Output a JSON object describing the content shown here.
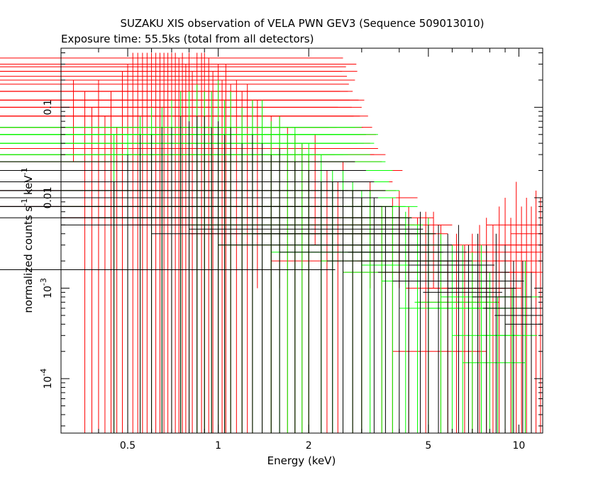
{
  "chart_data": {
    "type": "scatter",
    "title": "SUZAKU XIS observation of VELA PWN GEV3 (Sequence 509013010)",
    "subtitle": "Exposure time: 55.5ks (total from all detectors)",
    "xlabel": "Energy (keV)",
    "ylabel": "normalized counts s^-1 keV^-1",
    "x_scale": "log",
    "y_scale": "log",
    "xlim": [
      0.3,
      12.0
    ],
    "ylim": [
      2.5e-05,
      0.45
    ],
    "x_ticks": [
      {
        "value": 0.5,
        "label": "0.5"
      },
      {
        "value": 1,
        "label": "1"
      },
      {
        "value": 2,
        "label": "2"
      },
      {
        "value": 5,
        "label": "5"
      },
      {
        "value": 10,
        "label": "10"
      }
    ],
    "y_ticks": [
      {
        "value": 0.0001,
        "label": "10^-4"
      },
      {
        "value": 0.001,
        "label": "10^-3"
      },
      {
        "value": 0.01,
        "label": "0.01"
      },
      {
        "value": 0.1,
        "label": "0.1"
      }
    ],
    "grid": false,
    "legend": "none",
    "series": [
      {
        "color": "#ff0000",
        "points": [
          [
            0.33,
            0.06,
            0.025,
            0.2
          ],
          [
            0.36,
            0.035,
            2e-05,
            0.15
          ],
          [
            0.38,
            0.02,
            2e-05,
            0.1
          ],
          [
            0.4,
            0.05,
            2e-05,
            0.2
          ],
          [
            0.42,
            0.015,
            2e-05,
            0.08
          ],
          [
            0.44,
            0.03,
            2e-05,
            0.15
          ],
          [
            0.46,
            0.008,
            2e-05,
            0.06
          ],
          [
            0.48,
            0.06,
            2e-05,
            0.25
          ],
          [
            0.5,
            0.1,
            2e-05,
            0.3
          ],
          [
            0.52,
            0.2,
            2e-05,
            0.4
          ],
          [
            0.54,
            0.15,
            2e-05,
            0.4
          ],
          [
            0.56,
            0.3,
            2e-05,
            0.4
          ],
          [
            0.58,
            0.25,
            2e-05,
            0.4
          ],
          [
            0.6,
            0.35,
            2e-05,
            0.4
          ],
          [
            0.62,
            0.3,
            2e-05,
            0.4
          ],
          [
            0.64,
            0.2,
            2e-05,
            0.4
          ],
          [
            0.66,
            0.28,
            2e-05,
            0.4
          ],
          [
            0.68,
            0.22,
            2e-05,
            0.4
          ],
          [
            0.7,
            0.15,
            2e-05,
            0.4
          ],
          [
            0.72,
            0.18,
            2e-05,
            0.4
          ],
          [
            0.74,
            0.12,
            2e-05,
            0.35
          ],
          [
            0.76,
            0.2,
            2e-05,
            0.4
          ],
          [
            0.78,
            0.1,
            2e-05,
            0.3
          ],
          [
            0.8,
            0.15,
            2e-05,
            0.4
          ],
          [
            0.82,
            0.08,
            2e-05,
            0.25
          ],
          [
            0.85,
            0.2,
            2e-05,
            0.4
          ],
          [
            0.88,
            0.3,
            2e-05,
            0.4
          ],
          [
            0.9,
            0.25,
            2e-05,
            0.4
          ],
          [
            0.93,
            0.12,
            2e-05,
            0.35
          ],
          [
            0.96,
            0.08,
            2e-05,
            0.25
          ],
          [
            1.0,
            0.1,
            2e-05,
            0.3
          ],
          [
            1.03,
            0.06,
            2e-05,
            0.2
          ],
          [
            1.06,
            0.12,
            2e-05,
            0.3
          ],
          [
            1.1,
            0.05,
            2e-05,
            0.18
          ],
          [
            1.15,
            0.08,
            2e-05,
            0.2
          ],
          [
            1.2,
            0.04,
            2e-05,
            0.15
          ],
          [
            1.25,
            0.06,
            2e-05,
            0.18
          ],
          [
            1.3,
            0.03,
            2e-05,
            0.12
          ],
          [
            1.35,
            0.05,
            0.001,
            0.12
          ],
          [
            1.4,
            0.035,
            2e-05,
            0.1
          ],
          [
            1.5,
            0.025,
            2e-05,
            0.08
          ],
          [
            1.6,
            0.03,
            0.001,
            0.08
          ],
          [
            1.7,
            0.02,
            2e-05,
            0.06
          ],
          [
            1.8,
            0.015,
            2e-05,
            0.05
          ],
          [
            1.9,
            0.012,
            2e-05,
            0.04
          ],
          [
            2.0,
            0.008,
            2e-05,
            0.03
          ],
          [
            2.1,
            0.02,
            0.003,
            0.05
          ],
          [
            2.3,
            0.006,
            2e-05,
            0.02
          ],
          [
            2.5,
            0.005,
            2e-05,
            0.015
          ],
          [
            2.6,
            0.01,
            0.002,
            0.025
          ],
          [
            2.8,
            0.004,
            2e-05,
            0.012
          ],
          [
            3.0,
            0.003,
            2e-05,
            0.01
          ],
          [
            3.2,
            0.006,
            0.001,
            0.015
          ],
          [
            3.5,
            0.002,
            2e-05,
            0.008
          ],
          [
            3.8,
            0.004,
            2e-05,
            0.01
          ],
          [
            4.0,
            0.005,
            0.001,
            0.012
          ],
          [
            4.3,
            0.003,
            2e-05,
            0.008
          ],
          [
            4.6,
            0.0015,
            2e-05,
            0.006
          ],
          [
            4.9,
            0.002,
            2e-05,
            0.007
          ],
          [
            5.2,
            0.003,
            0.001,
            0.007
          ],
          [
            5.5,
            0.0015,
            2e-05,
            0.005
          ],
          [
            5.8,
            0.0002,
            2e-05,
            0.002
          ],
          [
            6.2,
            0.001,
            2e-05,
            0.004
          ],
          [
            6.6,
            0.0007,
            2e-05,
            0.003
          ],
          [
            7.0,
            0.001,
            2e-05,
            0.004
          ],
          [
            7.4,
            0.002,
            2e-05,
            0.005
          ],
          [
            7.8,
            0.0015,
            2e-05,
            0.006
          ],
          [
            8.2,
            0.001,
            2e-05,
            0.005
          ],
          [
            8.6,
            0.0025,
            2e-05,
            0.008
          ],
          [
            9.0,
            0.003,
            2e-05,
            0.01
          ],
          [
            9.4,
            0.0015,
            2e-05,
            0.006
          ],
          [
            9.8,
            0.005,
            2e-05,
            0.015
          ],
          [
            10.2,
            0.002,
            2e-05,
            0.008
          ],
          [
            10.6,
            0.003,
            2e-05,
            0.01
          ],
          [
            11.0,
            0.0015,
            2e-05,
            0.008
          ],
          [
            11.4,
            0.004,
            2e-05,
            0.012
          ],
          [
            11.8,
            0.0025,
            2e-05,
            0.01
          ]
        ]
      },
      {
        "color": "#00ff00",
        "points": [
          [
            0.35,
            0.0016,
            0.0016,
            0.0016
          ],
          [
            0.45,
            0.015,
            2e-05,
            0.05
          ],
          [
            0.5,
            0.01,
            2e-05,
            0.05
          ],
          [
            0.55,
            0.02,
            2e-05,
            0.08
          ],
          [
            0.6,
            0.03,
            2e-05,
            0.1
          ],
          [
            0.65,
            0.02,
            2e-05,
            0.1
          ],
          [
            0.7,
            0.03,
            2e-05,
            0.12
          ],
          [
            0.75,
            0.04,
            2e-05,
            0.15
          ],
          [
            0.8,
            0.05,
            2e-05,
            0.15
          ],
          [
            0.85,
            0.06,
            2e-05,
            0.18
          ],
          [
            0.9,
            0.04,
            2e-05,
            0.15
          ],
          [
            0.95,
            0.05,
            2e-05,
            0.15
          ],
          [
            1.0,
            0.06,
            2e-05,
            0.2
          ],
          [
            1.05,
            0.04,
            2e-05,
            0.12
          ],
          [
            1.1,
            0.05,
            2e-05,
            0.15
          ],
          [
            1.2,
            0.03,
            2e-05,
            0.1
          ],
          [
            1.3,
            0.04,
            2e-05,
            0.12
          ],
          [
            1.4,
            0.05,
            2e-05,
            0.12
          ],
          [
            1.5,
            0.02,
            2e-05,
            0.07
          ],
          [
            1.6,
            0.025,
            2e-05,
            0.08
          ],
          [
            1.7,
            0.015,
            2e-05,
            0.05
          ],
          [
            1.8,
            0.02,
            2e-05,
            0.06
          ],
          [
            1.9,
            0.01,
            2e-05,
            0.04
          ],
          [
            2.0,
            0.012,
            2e-05,
            0.04
          ],
          [
            2.2,
            0.008,
            2e-05,
            0.03
          ],
          [
            2.4,
            0.006,
            2e-05,
            0.02
          ],
          [
            2.6,
            0.008,
            2e-05,
            0.02
          ],
          [
            2.8,
            0.005,
            2e-05,
            0.015
          ],
          [
            3.0,
            0.003,
            2e-05,
            0.012
          ],
          [
            3.2,
            0.004,
            2e-05,
            0.012
          ],
          [
            3.5,
            0.0025,
            2e-05,
            0.008
          ],
          [
            3.8,
            0.003,
            2e-05,
            0.008
          ],
          [
            4.2,
            0.002,
            2e-05,
            0.007
          ],
          [
            4.6,
            0.0015,
            2e-05,
            0.005
          ],
          [
            5.0,
            0.0018,
            2e-05,
            0.006
          ],
          [
            5.5,
            0.0012,
            2e-05,
            0.004
          ],
          [
            6.0,
            0.0006,
            2e-05,
            0.003
          ],
          [
            6.5,
            0.0007,
            2e-05,
            0.003
          ],
          [
            7.0,
            0.0006,
            2e-05,
            0.0025
          ],
          [
            7.5,
            0.0008,
            2e-05,
            0.003
          ],
          [
            8.0,
            0.0003,
            2e-05,
            0.0015
          ],
          [
            8.5,
            0.00015,
            2e-05,
            0.0008
          ],
          [
            9.0,
            0.0006,
            2e-05,
            0.002
          ],
          [
            9.5,
            0.0003,
            2e-05,
            0.001
          ],
          [
            10.5,
            0.0008,
            2e-05,
            0.002
          ]
        ]
      },
      {
        "color": "#000000",
        "points": [
          [
            0.45,
            0.0016,
            2e-05,
            0.015
          ],
          [
            0.5,
            0.006,
            2e-05,
            0.03
          ],
          [
            0.55,
            0.01,
            2e-05,
            0.05
          ],
          [
            0.6,
            0.008,
            2e-05,
            0.05
          ],
          [
            0.65,
            0.015,
            2e-05,
            0.06
          ],
          [
            0.7,
            0.012,
            2e-05,
            0.06
          ],
          [
            0.75,
            0.02,
            2e-05,
            0.08
          ],
          [
            0.8,
            0.015,
            2e-05,
            0.07
          ],
          [
            0.85,
            0.025,
            2e-05,
            0.08
          ],
          [
            0.9,
            0.02,
            2e-05,
            0.08
          ],
          [
            0.95,
            0.015,
            2e-05,
            0.06
          ],
          [
            1.0,
            0.02,
            2e-05,
            0.07
          ],
          [
            1.05,
            0.015,
            2e-05,
            0.05
          ],
          [
            1.1,
            0.02,
            2e-05,
            0.06
          ],
          [
            1.2,
            0.012,
            2e-05,
            0.04
          ],
          [
            1.3,
            0.015,
            2e-05,
            0.05
          ],
          [
            1.4,
            0.01,
            2e-05,
            0.04
          ],
          [
            1.5,
            0.008,
            2e-05,
            0.03
          ],
          [
            1.6,
            0.012,
            2e-05,
            0.035
          ],
          [
            1.8,
            0.008,
            2e-05,
            0.025
          ],
          [
            2.0,
            0.006,
            2e-05,
            0.02
          ],
          [
            2.2,
            0.005,
            2e-05,
            0.015
          ],
          [
            2.4,
            0.006,
            2e-05,
            0.015
          ],
          [
            2.6,
            0.004,
            2e-05,
            0.012
          ],
          [
            2.8,
            0.0045,
            2e-05,
            0.012
          ],
          [
            3.0,
            0.003,
            2e-05,
            0.01
          ],
          [
            3.3,
            0.004,
            2e-05,
            0.01
          ],
          [
            3.6,
            0.0025,
            2e-05,
            0.008
          ],
          [
            4.0,
            0.003,
            2e-05,
            0.008
          ],
          [
            4.3,
            0.002,
            2e-05,
            0.006
          ],
          [
            4.7,
            0.0025,
            2e-05,
            0.007
          ],
          [
            5.0,
            0.002,
            2e-05,
            0.005
          ],
          [
            5.4,
            0.0015,
            2e-05,
            0.005
          ],
          [
            5.8,
            0.0012,
            2e-05,
            0.004
          ],
          [
            6.3,
            0.0018,
            2e-05,
            0.005
          ],
          [
            6.8,
            0.0009,
            2e-05,
            0.003
          ],
          [
            7.3,
            0.0015,
            2e-05,
            0.004
          ],
          [
            7.8,
            0.001,
            2e-05,
            0.003
          ],
          [
            8.4,
            0.0012,
            2e-05,
            0.004
          ],
          [
            9.0,
            0.0008,
            2e-05,
            0.003
          ],
          [
            9.6,
            0.0006,
            2e-05,
            0.002
          ],
          [
            10.3,
            0.0005,
            2e-05,
            0.002
          ],
          [
            11.0,
            0.0004,
            2e-05,
            0.0015
          ]
        ]
      }
    ]
  }
}
